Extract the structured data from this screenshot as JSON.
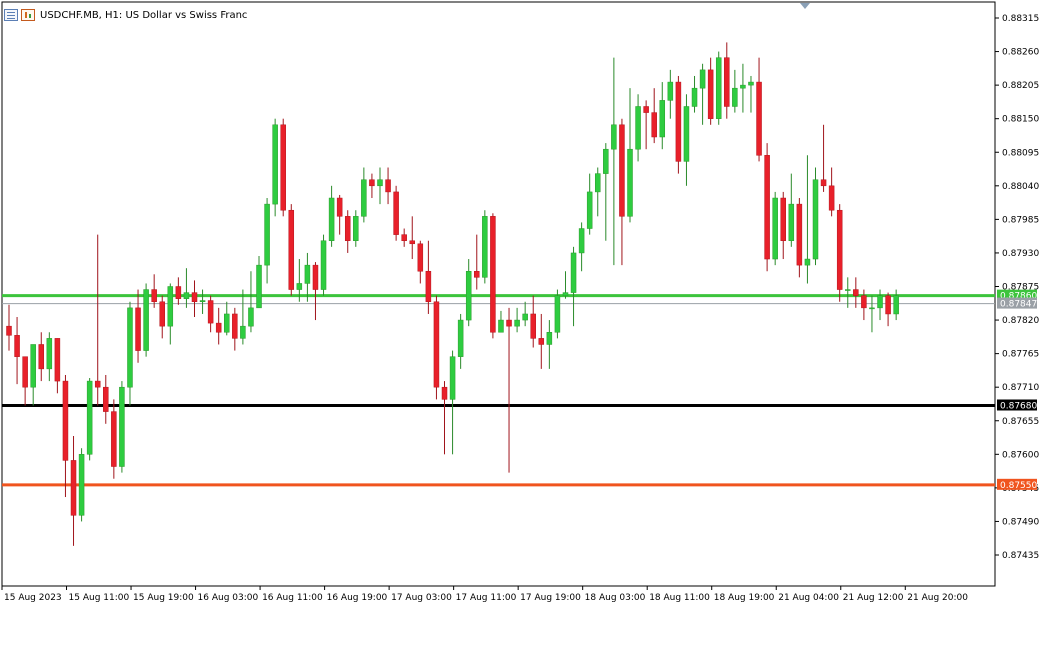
{
  "window": {
    "symbol_title": "USDCHF.MB, H1:  US Dollar vs Swiss Franc",
    "icons": [
      "list-icon",
      "bar-chart-icon"
    ]
  },
  "colors": {
    "background": "#ffffff",
    "bull": "#2ecc40",
    "bear": "#e8202a",
    "wick": "#2e2e2e",
    "axis": "#000000",
    "level_green": "#3cc43c",
    "level_black": "#000000",
    "level_orange": "#f0541e",
    "marker": "#8aa0b6"
  },
  "chart_data": {
    "type": "candlestick",
    "title": "",
    "timeframe": "H1",
    "ylim": [
      0.8738,
      0.8836
    ],
    "y_ticks": [
      "0.88315",
      "0.88260",
      "0.88205",
      "0.88150",
      "0.88095",
      "0.88040",
      "0.87985",
      "0.87930",
      "0.87875",
      "0.87820",
      "0.87765",
      "0.87710",
      "0.87655",
      "0.87600",
      "0.87545",
      "0.87490",
      "0.87435"
    ],
    "x_ticks": [
      "15 Aug 2023",
      "15 Aug 11:00",
      "15 Aug 19:00",
      "16 Aug 03:00",
      "16 Aug 11:00",
      "16 Aug 19:00",
      "17 Aug 03:00",
      "17 Aug 11:00",
      "17 Aug 19:00",
      "18 Aug 03:00",
      "18 Aug 11:00",
      "18 Aug 19:00",
      "21 Aug 04:00",
      "21 Aug 12:00",
      "21 Aug 20:00"
    ],
    "x_tick_candle_index": [
      0,
      8,
      16,
      24,
      32,
      40,
      48,
      56,
      64,
      72,
      80,
      88,
      96,
      104,
      112
    ],
    "horizontal_levels": [
      {
        "price": 0.8786,
        "label": "0.87860",
        "color": "#3cc43c",
        "thick": true
      },
      {
        "price": 0.87847,
        "label": "0.87847",
        "color": "#9aa0a6",
        "thick": false
      },
      {
        "price": 0.8768,
        "label": "0.87680",
        "color": "#000000",
        "thick": true
      },
      {
        "price": 0.8755,
        "label": "0.87550",
        "color": "#f0541e",
        "thick": true
      }
    ],
    "candles": [
      [
        0.8781,
        0.87795,
        0.87845,
        0.8777
      ],
      [
        0.87795,
        0.8776,
        0.87825,
        0.87715
      ],
      [
        0.8776,
        0.8771,
        0.8776,
        0.8768
      ],
      [
        0.8771,
        0.8778,
        0.8778,
        0.8768
      ],
      [
        0.8778,
        0.8774,
        0.878,
        0.8772
      ],
      [
        0.8774,
        0.8779,
        0.878,
        0.8772
      ],
      [
        0.8779,
        0.8772,
        0.8779,
        0.877
      ],
      [
        0.8772,
        0.8759,
        0.8773,
        0.8753
      ],
      [
        0.8759,
        0.875,
        0.8763,
        0.8745
      ],
      [
        0.875,
        0.876,
        0.8761,
        0.8749
      ],
      [
        0.876,
        0.8772,
        0.87725,
        0.8759
      ],
      [
        0.8772,
        0.8771,
        0.8796,
        0.8768
      ],
      [
        0.8771,
        0.8767,
        0.8773,
        0.8765
      ],
      [
        0.8767,
        0.8758,
        0.8769,
        0.8756
      ],
      [
        0.8758,
        0.8771,
        0.8772,
        0.8757
      ],
      [
        0.8771,
        0.8784,
        0.8785,
        0.8768
      ],
      [
        0.8784,
        0.8777,
        0.8787,
        0.8775
      ],
      [
        0.8777,
        0.8787,
        0.8788,
        0.8776
      ],
      [
        0.8787,
        0.8785,
        0.87895,
        0.8784
      ],
      [
        0.8785,
        0.8781,
        0.8786,
        0.8779
      ],
      [
        0.8781,
        0.87875,
        0.8788,
        0.8778
      ],
      [
        0.87875,
        0.87855,
        0.8789,
        0.87845
      ],
      [
        0.87855,
        0.87865,
        0.87905,
        0.8784
      ],
      [
        0.87865,
        0.8785,
        0.87885,
        0.87825
      ],
      [
        0.8785,
        0.87852,
        0.8787,
        0.8783
      ],
      [
        0.87852,
        0.87815,
        0.8786,
        0.878
      ],
      [
        0.87815,
        0.878,
        0.8784,
        0.8778
      ],
      [
        0.878,
        0.8783,
        0.8785,
        0.87795
      ],
      [
        0.8783,
        0.8779,
        0.8784,
        0.8777
      ],
      [
        0.8779,
        0.8781,
        0.8787,
        0.8778
      ],
      [
        0.8781,
        0.8784,
        0.879,
        0.878
      ],
      [
        0.8784,
        0.8791,
        0.87925,
        0.8784
      ],
      [
        0.8791,
        0.8801,
        0.8802,
        0.8788
      ],
      [
        0.8801,
        0.8814,
        0.8815,
        0.8799
      ],
      [
        0.8814,
        0.88,
        0.8815,
        0.8799
      ],
      [
        0.88,
        0.8787,
        0.8801,
        0.8786
      ],
      [
        0.8787,
        0.8788,
        0.8792,
        0.8785
      ],
      [
        0.8788,
        0.8791,
        0.8793,
        0.8785
      ],
      [
        0.8791,
        0.8787,
        0.87915,
        0.8782
      ],
      [
        0.8787,
        0.8795,
        0.8796,
        0.8786
      ],
      [
        0.8795,
        0.8802,
        0.8804,
        0.8794
      ],
      [
        0.8802,
        0.8799,
        0.88025,
        0.8796
      ],
      [
        0.8799,
        0.8795,
        0.88,
        0.8793
      ],
      [
        0.8795,
        0.8799,
        0.88,
        0.8794
      ],
      [
        0.8799,
        0.8805,
        0.8807,
        0.8798
      ],
      [
        0.8805,
        0.8804,
        0.8806,
        0.8802
      ],
      [
        0.8804,
        0.8805,
        0.8807,
        0.8801
      ],
      [
        0.8805,
        0.8803,
        0.8807,
        0.8801
      ],
      [
        0.8803,
        0.8796,
        0.8804,
        0.8795
      ],
      [
        0.8796,
        0.8795,
        0.8797,
        0.8794
      ],
      [
        0.8795,
        0.87945,
        0.8799,
        0.8792
      ],
      [
        0.87945,
        0.879,
        0.8795,
        0.8788
      ],
      [
        0.879,
        0.8785,
        0.8795,
        0.8783
      ],
      [
        0.8785,
        0.8771,
        0.8786,
        0.8769
      ],
      [
        0.8771,
        0.8769,
        0.8772,
        0.876
      ],
      [
        0.8769,
        0.8776,
        0.8777,
        0.876
      ],
      [
        0.8776,
        0.8782,
        0.8783,
        0.8774
      ],
      [
        0.8782,
        0.879,
        0.8792,
        0.8781
      ],
      [
        0.879,
        0.8789,
        0.8796,
        0.8787
      ],
      [
        0.8789,
        0.8799,
        0.88,
        0.8788
      ],
      [
        0.8799,
        0.878,
        0.87995,
        0.8779
      ],
      [
        0.878,
        0.8782,
        0.87835,
        0.878
      ],
      [
        0.8782,
        0.8781,
        0.8784,
        0.8757
      ],
      [
        0.8781,
        0.8782,
        0.8784,
        0.878
      ],
      [
        0.8782,
        0.8783,
        0.8785,
        0.8781
      ],
      [
        0.8783,
        0.8779,
        0.8786,
        0.87775
      ],
      [
        0.8779,
        0.8778,
        0.8783,
        0.8774
      ],
      [
        0.8778,
        0.878,
        0.8782,
        0.8774
      ],
      [
        0.878,
        0.8786,
        0.8787,
        0.8779
      ],
      [
        0.8786,
        0.87865,
        0.879,
        0.87855
      ],
      [
        0.87865,
        0.8793,
        0.8794,
        0.8781
      ],
      [
        0.8793,
        0.8797,
        0.8798,
        0.879
      ],
      [
        0.8797,
        0.8803,
        0.8806,
        0.8796
      ],
      [
        0.8803,
        0.8806,
        0.8807,
        0.8799
      ],
      [
        0.8806,
        0.881,
        0.8811,
        0.8795
      ],
      [
        0.881,
        0.8814,
        0.8825,
        0.8791
      ],
      [
        0.8814,
        0.8799,
        0.8815,
        0.8791
      ],
      [
        0.8799,
        0.881,
        0.882,
        0.8798
      ],
      [
        0.881,
        0.8817,
        0.8819,
        0.8808
      ],
      [
        0.8817,
        0.8816,
        0.8818,
        0.881
      ],
      [
        0.8816,
        0.8812,
        0.882,
        0.8811
      ],
      [
        0.8812,
        0.8818,
        0.8821,
        0.881
      ],
      [
        0.8818,
        0.8821,
        0.8823,
        0.8815
      ],
      [
        0.8821,
        0.8808,
        0.8822,
        0.8806
      ],
      [
        0.8808,
        0.8817,
        0.8819,
        0.8804
      ],
      [
        0.8817,
        0.882,
        0.8822,
        0.8816
      ],
      [
        0.882,
        0.8823,
        0.8824,
        0.8814
      ],
      [
        0.8823,
        0.8815,
        0.8825,
        0.8814
      ],
      [
        0.8815,
        0.8825,
        0.8826,
        0.8814
      ],
      [
        0.8825,
        0.8817,
        0.88275,
        0.8815
      ],
      [
        0.8817,
        0.882,
        0.8823,
        0.8816
      ],
      [
        0.882,
        0.88205,
        0.8824,
        0.8816
      ],
      [
        0.88205,
        0.8821,
        0.8822,
        0.8816
      ],
      [
        0.8821,
        0.8809,
        0.8825,
        0.8808
      ],
      [
        0.8809,
        0.8792,
        0.8811,
        0.879
      ],
      [
        0.8792,
        0.8802,
        0.8803,
        0.8791
      ],
      [
        0.8802,
        0.8795,
        0.8803,
        0.8792
      ],
      [
        0.8795,
        0.8801,
        0.8806,
        0.8794
      ],
      [
        0.8801,
        0.8791,
        0.8802,
        0.8789
      ],
      [
        0.8791,
        0.8792,
        0.8809,
        0.8788
      ],
      [
        0.8792,
        0.8805,
        0.8807,
        0.8791
      ],
      [
        0.8805,
        0.8804,
        0.8814,
        0.8803
      ],
      [
        0.8804,
        0.88,
        0.8807,
        0.8799
      ],
      [
        0.88,
        0.8787,
        0.8801,
        0.8785
      ],
      [
        0.8787,
        0.8787,
        0.8789,
        0.8784
      ],
      [
        0.8787,
        0.8786,
        0.8789,
        0.8784
      ],
      [
        0.8786,
        0.8784,
        0.8787,
        0.8782
      ],
      [
        0.8784,
        0.8784,
        0.8786,
        0.878
      ],
      [
        0.8784,
        0.8786,
        0.8787,
        0.8782
      ],
      [
        0.8786,
        0.8783,
        0.87865,
        0.8781
      ],
      [
        0.8783,
        0.8786,
        0.8787,
        0.8782
      ]
    ]
  }
}
